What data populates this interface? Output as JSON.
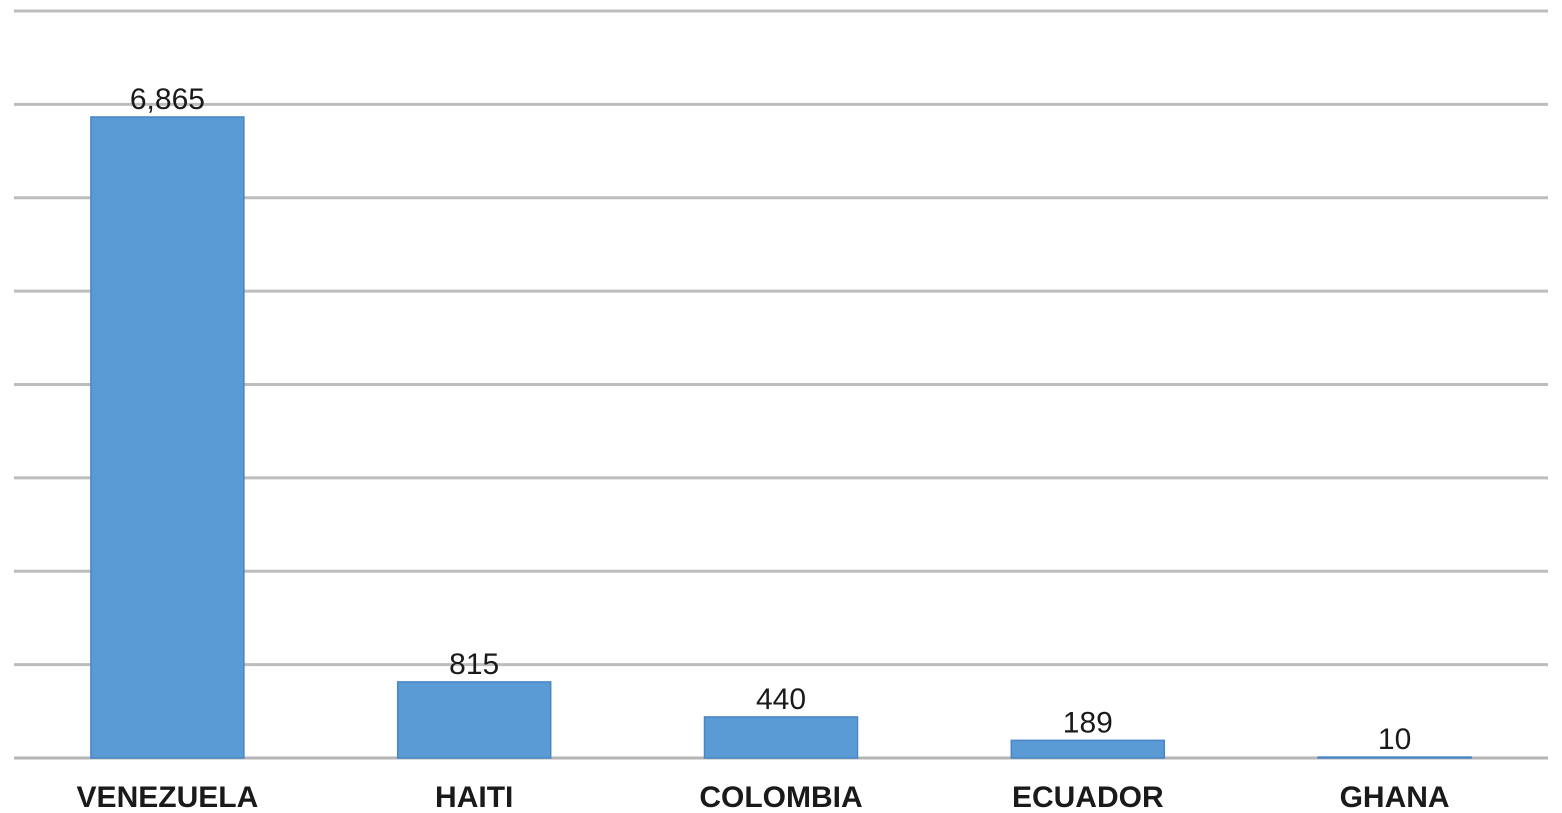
{
  "chart_data": {
    "type": "bar",
    "title": "",
    "xlabel": "",
    "ylabel": "",
    "categories": [
      "VENEZUELA",
      "HAITI",
      "COLOMBIA",
      "ECUADOR",
      "GHANA"
    ],
    "values": [
      6865,
      815,
      440,
      189,
      10
    ],
    "data_labels": [
      "6,865",
      "815",
      "440",
      "189",
      "10"
    ],
    "ylim": [
      0,
      8000
    ],
    "ytick_step": 1000,
    "grid": true,
    "y_tick_labels_shown": false,
    "legend": "none",
    "colors": {
      "bar": "#5b9bd5",
      "bar_edge": "#4a86c5",
      "grid": "#bdbdbd",
      "text": "#1a1a1a",
      "background": "#ffffff"
    }
  }
}
